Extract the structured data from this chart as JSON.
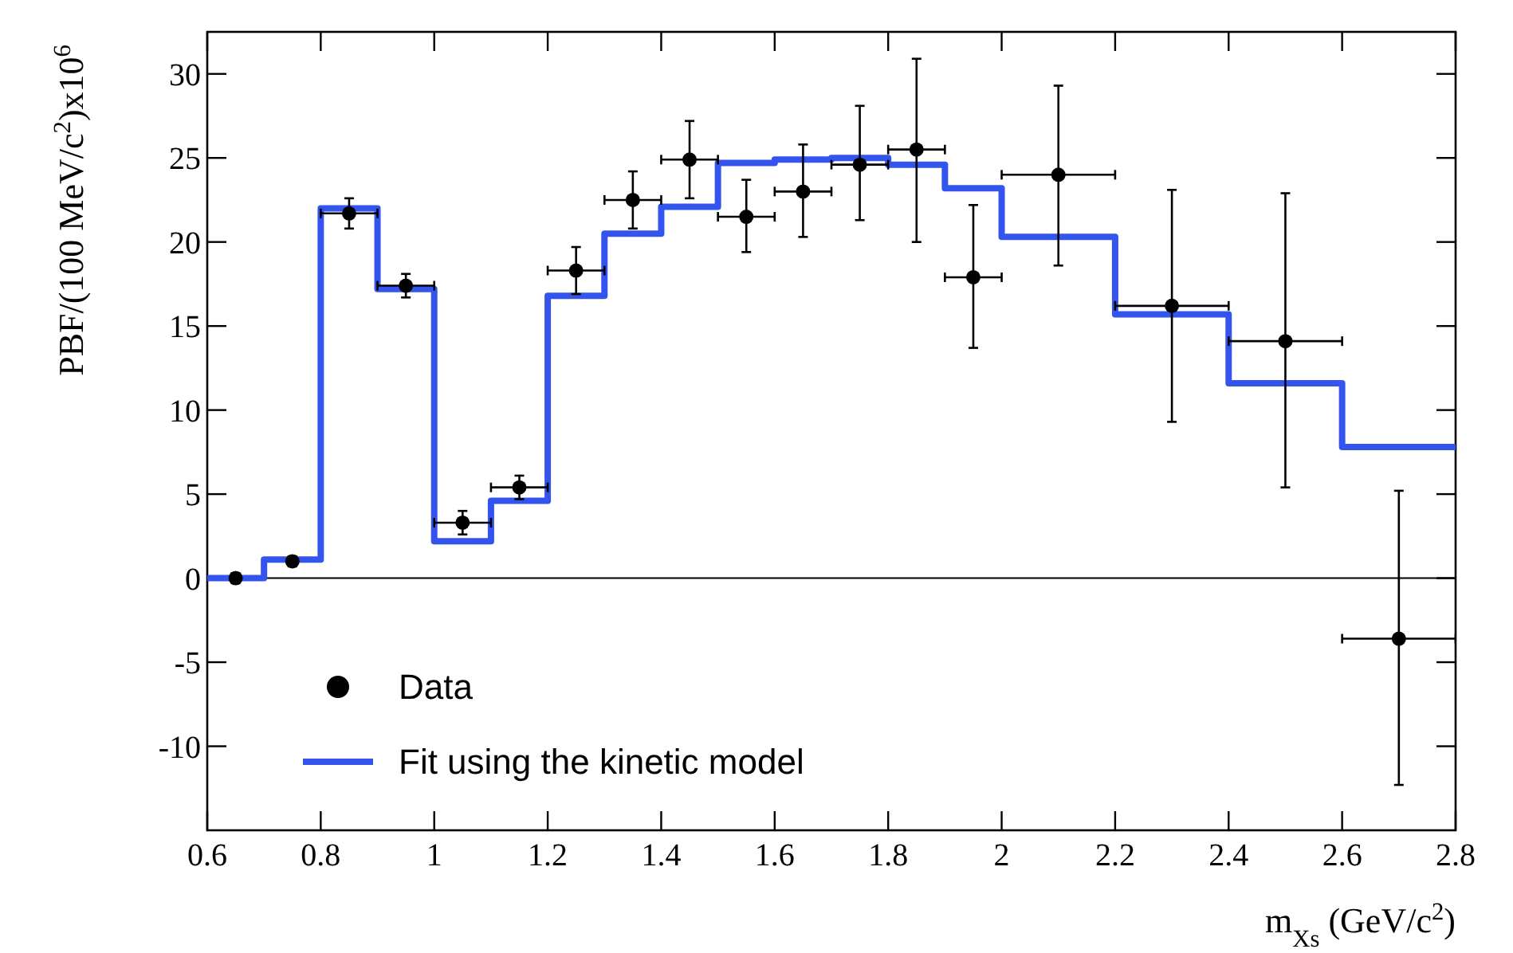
{
  "chart_data": {
    "type": "scatter",
    "xlabel": "m$_{Xs}$ (GeV/c$^{2}$)",
    "ylabel": "PBF/(100 MeV/c$^{2}$)x10$^{6}$",
    "xlim": [
      0.6,
      2.8
    ],
    "ylim": [
      -15,
      32.5
    ],
    "xticks": [
      0.6,
      0.8,
      1,
      1.2,
      1.4,
      1.6,
      1.8,
      2,
      2.2,
      2.4,
      2.6,
      2.8
    ],
    "yticks": [
      -10,
      -5,
      0,
      5,
      10,
      15,
      20,
      25,
      30
    ],
    "ref_lines": [
      {
        "axis": "y",
        "value": 0,
        "color": "#000000"
      }
    ],
    "legend": "bottom left",
    "grid": false,
    "series": [
      {
        "name": "Data",
        "color": "#000000",
        "marker": "circle",
        "x": [
          0.65,
          0.75,
          0.85,
          0.95,
          1.05,
          1.15,
          1.25,
          1.35,
          1.45,
          1.55,
          1.65,
          1.75,
          1.85,
          1.95,
          2.1,
          2.3,
          2.5,
          2.7
        ],
        "values": [
          0,
          1.0,
          21.7,
          17.4,
          3.3,
          5.4,
          18.3,
          22.5,
          24.9,
          21.5,
          23.0,
          24.6,
          25.5,
          17.9,
          24.0,
          16.2,
          14.1,
          -3.6
        ],
        "errors": [
          0.3,
          0.3,
          0.9,
          0.7,
          0.7,
          0.7,
          1.4,
          1.7,
          [
            22.6,
            27.2
          ],
          [
            19.4,
            23.7
          ],
          [
            20.3,
            25.8
          ],
          [
            21.3,
            28.1
          ],
          [
            20.0,
            30.9
          ],
          [
            13.7,
            22.2
          ],
          [
            18.6,
            29.3
          ],
          [
            9.3,
            23.1
          ],
          [
            5.4,
            22.9
          ],
          [
            -12.3,
            5.2
          ]
        ],
        "xerrors": [
          null,
          null,
          0.05,
          0.05,
          0.05,
          0.05,
          0.05,
          0.05,
          0.05,
          0.05,
          0.05,
          0.05,
          0.05,
          0.05,
          0.1,
          0.1,
          0.1,
          0.1
        ]
      },
      {
        "name": "Fit using the kinetic model",
        "type": "step",
        "color": "#3355ee",
        "marker": "none",
        "line_style": "solid",
        "x": [
          0.6,
          0.7,
          0.8,
          0.9,
          1.0,
          1.1,
          1.2,
          1.3,
          1.4,
          1.5,
          1.6,
          1.7,
          1.8,
          1.9,
          2.0,
          2.2,
          2.4,
          2.6,
          2.8
        ],
        "values": [
          0,
          1.1,
          22.0,
          17.2,
          2.2,
          4.6,
          16.8,
          20.5,
          22.1,
          24.7,
          24.9,
          25.0,
          24.6,
          23.2,
          20.3,
          15.7,
          11.6,
          7.8,
          7.8
        ]
      }
    ]
  }
}
